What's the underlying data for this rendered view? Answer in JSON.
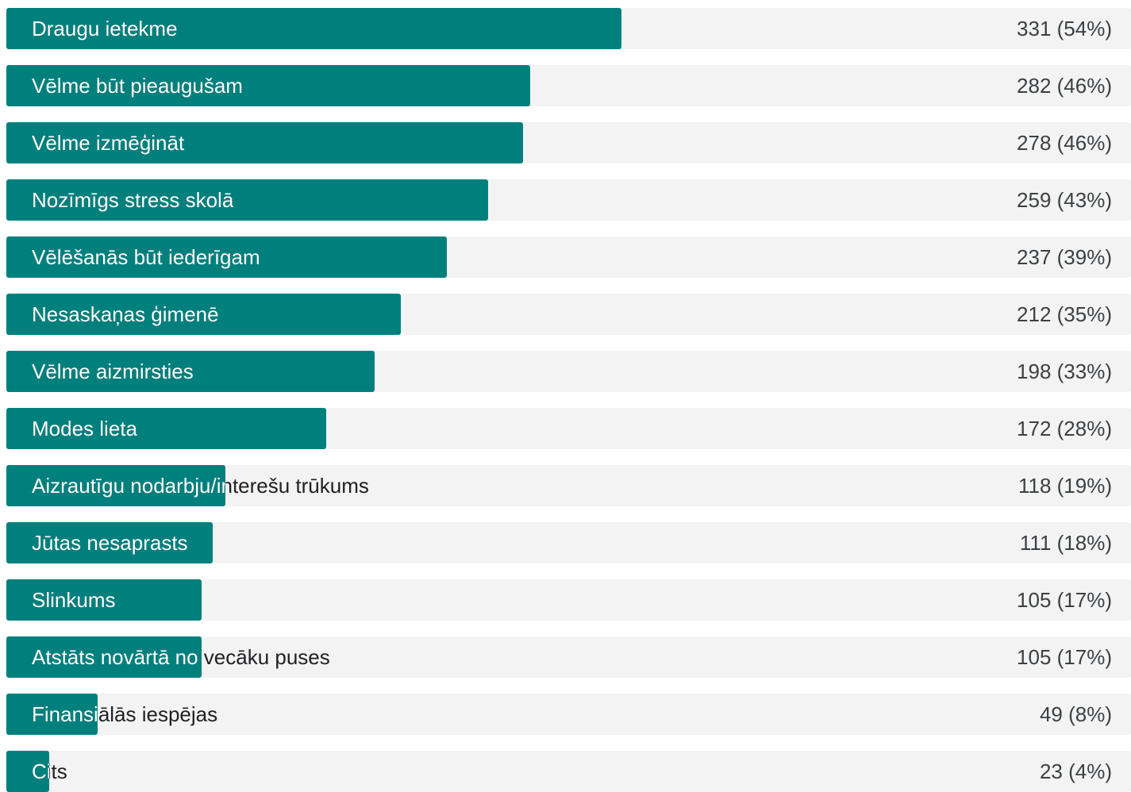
{
  "chart_data": {
    "type": "bar",
    "orientation": "horizontal",
    "categories": [
      "Draugu ietekme",
      "Vēlme būt pieaugušam",
      "Vēlme izmēģināt",
      "Nozīmīgs stress skolā",
      "Vēlēšanās būt iederīgam",
      "Nesaskaņas ģimenē",
      "Vēlme aizmirsties",
      "Modes lieta",
      "Aizrautīgu nodarbju/interešu trūkums",
      "Jūtas nesaprasts",
      "Slinkums",
      "Atstāts novārtā no vecāku puses",
      "Finansiālās iespējas",
      "Cits"
    ],
    "values": [
      331,
      282,
      278,
      259,
      237,
      212,
      198,
      172,
      118,
      111,
      105,
      105,
      49,
      23
    ],
    "value_labels": [
      "331 (54%)",
      "282 (46%)",
      "278 (46%)",
      "259 (43%)",
      "237 (39%)",
      "212 (35%)",
      "198 (33%)",
      "172 (28%)",
      "118 (19%)",
      "111 (18%)",
      "105 (17%)",
      "105 (17%)",
      "49 (8%)",
      "23 (4%)"
    ],
    "percentages": [
      54,
      46,
      46,
      43,
      39,
      35,
      33,
      28,
      19,
      18,
      17,
      17,
      8,
      4
    ],
    "xlim": [
      0,
      605
    ],
    "grid": false,
    "legend": "none"
  },
  "colors": {
    "bar": "#00807d",
    "track": "#f3f3f3"
  }
}
